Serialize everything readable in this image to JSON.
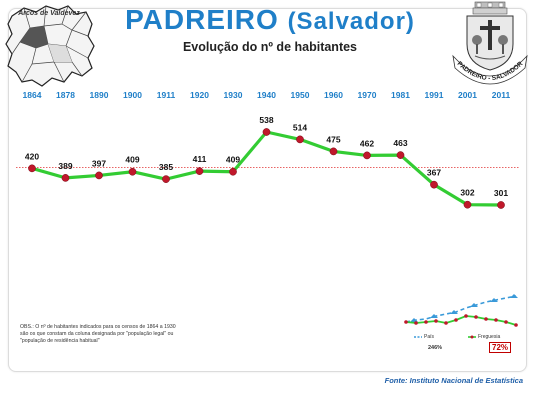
{
  "header": {
    "title_main": "PADREIRO",
    "title_paren": "(Salvador)",
    "subtitle": "Evolução do nº de habitantes",
    "map_label": "Arcos de Valdevez",
    "crest_label": "PADREIRO - SALVADOR"
  },
  "chart_data": {
    "type": "line",
    "title": "Evolução do nº de habitantes",
    "categories": [
      "1864",
      "1878",
      "1890",
      "1900",
      "1911",
      "1920",
      "1930",
      "1940",
      "1950",
      "1960",
      "1970",
      "1981",
      "1991",
      "2001",
      "2011"
    ],
    "series": [
      {
        "name": "",
        "values": [
          420,
          389,
          397,
          409,
          385,
          411,
          409,
          538,
          514,
          475,
          462,
          463,
          367,
          302,
          301
        ]
      }
    ],
    "reference_line": 420,
    "colors": {
      "line": "#33cc33",
      "marker": "#c0182b",
      "year": "#1f7fc8",
      "reference": "#e03030"
    }
  },
  "mini_chart": {
    "legend_pais": "País",
    "legend_freguesia": "Freguesia",
    "value_pais": "246%",
    "value_freguesia": "72%"
  },
  "notes": {
    "obs": "OBS.: O nº de habitantes indicados para os censos de 1864 a 1930 são os que constam da coluna designada por \"população legal\" ou \"população de residência habitual\"",
    "source": "Fonte: Instituto Nacional de Estatística"
  }
}
